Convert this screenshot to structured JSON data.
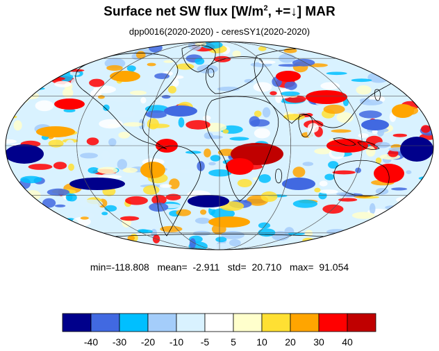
{
  "title": {
    "main": "Surface net SW flux [W/m",
    "sup": "2",
    "rest": ", +=↓]  MAR"
  },
  "subtitle": "dpp0016(2020-2020) - ceresSY1(2020-2020)",
  "stats": {
    "min_label": "min=",
    "min": "-118.808",
    "mean_label": "mean=",
    "mean": "-2.911",
    "std_label": "std=",
    "std": "20.710",
    "max_label": "max=",
    "max": "91.054"
  },
  "colorbar": {
    "colors": [
      "#00008b",
      "#4169e1",
      "#00bfff",
      "#a4cdfa",
      "#d9f2ff",
      "#ffffff",
      "#ffffcc",
      "#ffe033",
      "#ffa500",
      "#ff0000",
      "#c00000"
    ],
    "tick_labels": [
      "-40",
      "-30",
      "-20",
      "-10",
      "-5",
      "5",
      "10",
      "20",
      "30",
      "40"
    ]
  },
  "map": {
    "projection": "mollweide",
    "field": "difference dpp0016 minus ceresSY1",
    "colors": {
      "strong_negative": "#00008b",
      "negative": "#4169e1",
      "weak_negative": "#00bfff",
      "slight_negative": "#a4cdfa",
      "near_zero": "#d9f2ff",
      "zero": "#ffffff",
      "slight_positive": "#ffffcc",
      "weak_positive": "#ffe033",
      "positive": "#ffa500",
      "strong_positive": "#ff0000",
      "very_strong_positive": "#c00000"
    }
  }
}
